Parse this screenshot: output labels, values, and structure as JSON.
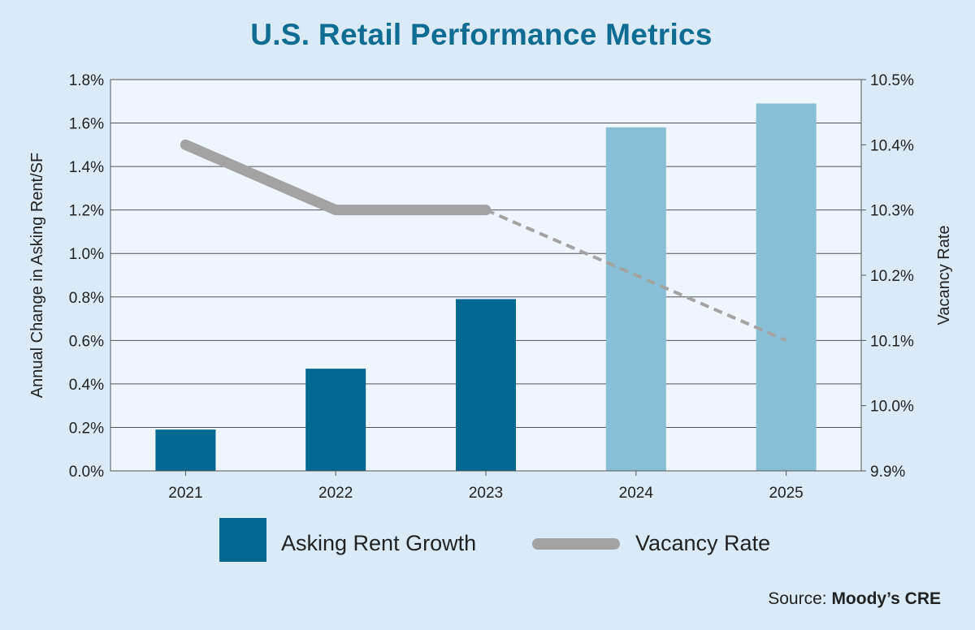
{
  "chart_data": {
    "type": "bar+line",
    "title": "U.S. Retail Performance Metrics",
    "categories": [
      "2021",
      "2022",
      "2023",
      "2024",
      "2025"
    ],
    "y_left": {
      "label": "Annual Change in Asking Rent/SF",
      "range": [
        0.0,
        1.8
      ],
      "ticks": [
        "0.0%",
        "0.2%",
        "0.4%",
        "0.6%",
        "0.8%",
        "1.0%",
        "1.2%",
        "1.4%",
        "1.6%",
        "1.8%"
      ]
    },
    "y_right": {
      "label": "Vacancy Rate",
      "range": [
        9.9,
        10.5
      ],
      "ticks": [
        "9.9%",
        "10.0%",
        "10.1%",
        "10.2%",
        "10.3%",
        "10.4%",
        "10.5%"
      ]
    },
    "series": [
      {
        "name": "Asking Rent Growth",
        "kind": "bar",
        "axis": "left",
        "values": [
          0.19,
          0.47,
          0.79,
          1.58,
          1.69
        ],
        "colors": [
          "#006891",
          "#006891",
          "#006891",
          "#88bfd6",
          "#88bfd6"
        ]
      },
      {
        "name": "Vacancy Rate",
        "kind": "line",
        "axis": "right",
        "values": [
          10.4,
          10.3,
          10.3,
          10.2,
          10.1
        ],
        "solid_through_index": 2,
        "color": "#a3a3a3"
      }
    ],
    "grid": "horizontal",
    "legend_position": "bottom"
  },
  "source": {
    "prefix": "Source:",
    "name": "Moody’s CRE"
  }
}
